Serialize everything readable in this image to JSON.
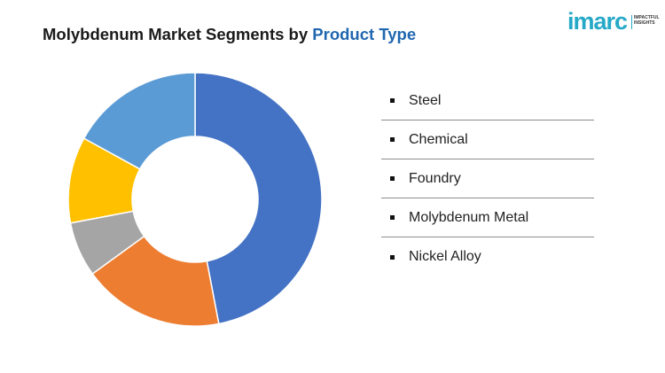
{
  "title": {
    "prefix": "Molybdenum Market Segments by",
    "highlight": "Product Type"
  },
  "logo": {
    "wordmark": "imarc",
    "tagline_line1": "IMPACTFUL",
    "tagline_line2": "INSIGHTS"
  },
  "colors": {
    "title_highlight": "#1f66b0",
    "logo": "#26a9c8"
  },
  "chart_data": {
    "type": "donut",
    "title": "Molybdenum Market Segments by Product Type",
    "legend_position": "right",
    "categories": [
      "Steel",
      "Chemical",
      "Foundry",
      "Molybdenum Metal",
      "Nickel Alloy"
    ],
    "values": [
      47,
      18,
      7,
      11,
      17
    ],
    "colors": [
      "#4472c4",
      "#ed7d31",
      "#a5a5a5",
      "#ffc000",
      "#5b9bd5"
    ],
    "labels_shown": false
  }
}
